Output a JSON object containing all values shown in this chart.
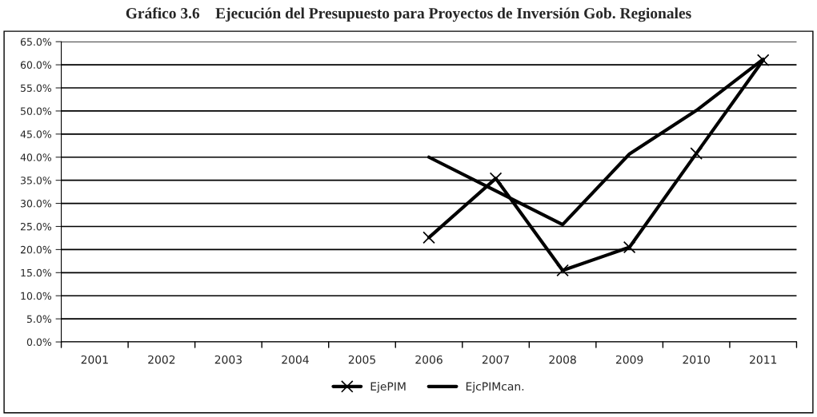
{
  "chart_data": {
    "type": "line",
    "title": "Gráfico 3.6    Ejecución del Presupuesto para Proyectos de Inversión Gob. Regionales",
    "categories": [
      "2001",
      "2002",
      "2003",
      "2004",
      "2005",
      "2006",
      "2007",
      "2008",
      "2009",
      "2010",
      "2011"
    ],
    "series": [
      {
        "name": "EjePIM",
        "color": "#000000",
        "marker": "cross",
        "values": [
          null,
          null,
          null,
          null,
          null,
          22.6,
          35.4,
          15.5,
          20.5,
          40.8,
          61.0
        ]
      },
      {
        "name": "EjcPIMcan.",
        "color": "#000000",
        "marker": "none",
        "values": [
          null,
          null,
          null,
          null,
          null,
          40.0,
          32.7,
          25.4,
          40.7,
          50.1,
          61.2
        ]
      }
    ],
    "ylim": [
      0,
      65
    ],
    "yticks": [
      {
        "value": 0,
        "label": "0.0%"
      },
      {
        "value": 5,
        "label": "5.0%"
      },
      {
        "value": 10,
        "label": "10.0%"
      },
      {
        "value": 15,
        "label": "15.0%"
      },
      {
        "value": 20,
        "label": "20.0%"
      },
      {
        "value": 25,
        "label": "25.0%"
      },
      {
        "value": 30,
        "label": "30.0%"
      },
      {
        "value": 35,
        "label": "35.0%"
      },
      {
        "value": 40,
        "label": "40.0%"
      },
      {
        "value": 45,
        "label": "45.0%"
      },
      {
        "value": 50,
        "label": "50.0%"
      },
      {
        "value": 55,
        "label": "55.0%"
      },
      {
        "value": 60,
        "label": "60.0%"
      },
      {
        "value": 65,
        "label": "65.0%"
      }
    ],
    "grid": "y",
    "legend": "bottom",
    "line_style": "solid"
  }
}
